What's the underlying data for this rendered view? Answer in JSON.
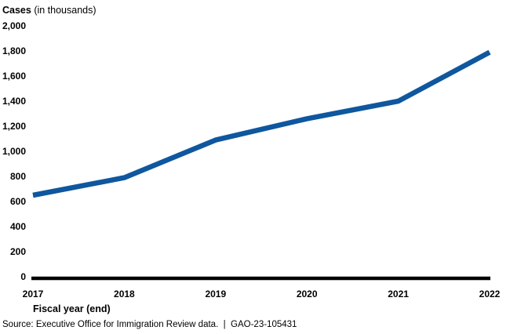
{
  "header": {
    "title_bold": "Cases",
    "title_suffix": " (in thousands)"
  },
  "chart_data": {
    "type": "line",
    "title": "Cases (in thousands)",
    "xlabel": "Fiscal year (end)",
    "ylabel": "Cases (in thousands)",
    "categories": [
      "2017",
      "2018",
      "2019",
      "2020",
      "2021",
      "2022"
    ],
    "values": [
      650,
      790,
      1090,
      1260,
      1400,
      1790
    ],
    "ylim": [
      0,
      2000
    ],
    "ytick_step": 200,
    "ytick_labels": [
      "0",
      "200",
      "400",
      "600",
      "800",
      "1,000",
      "1,200",
      "1,400",
      "1,600",
      "1,800",
      "2,000"
    ],
    "grid": false,
    "legend": "none",
    "line_color": "#0F579E",
    "axis_color": "#000000"
  },
  "footer": {
    "source": "Source: Executive Office for Immigration Review data.  |  GAO-23-105431"
  }
}
